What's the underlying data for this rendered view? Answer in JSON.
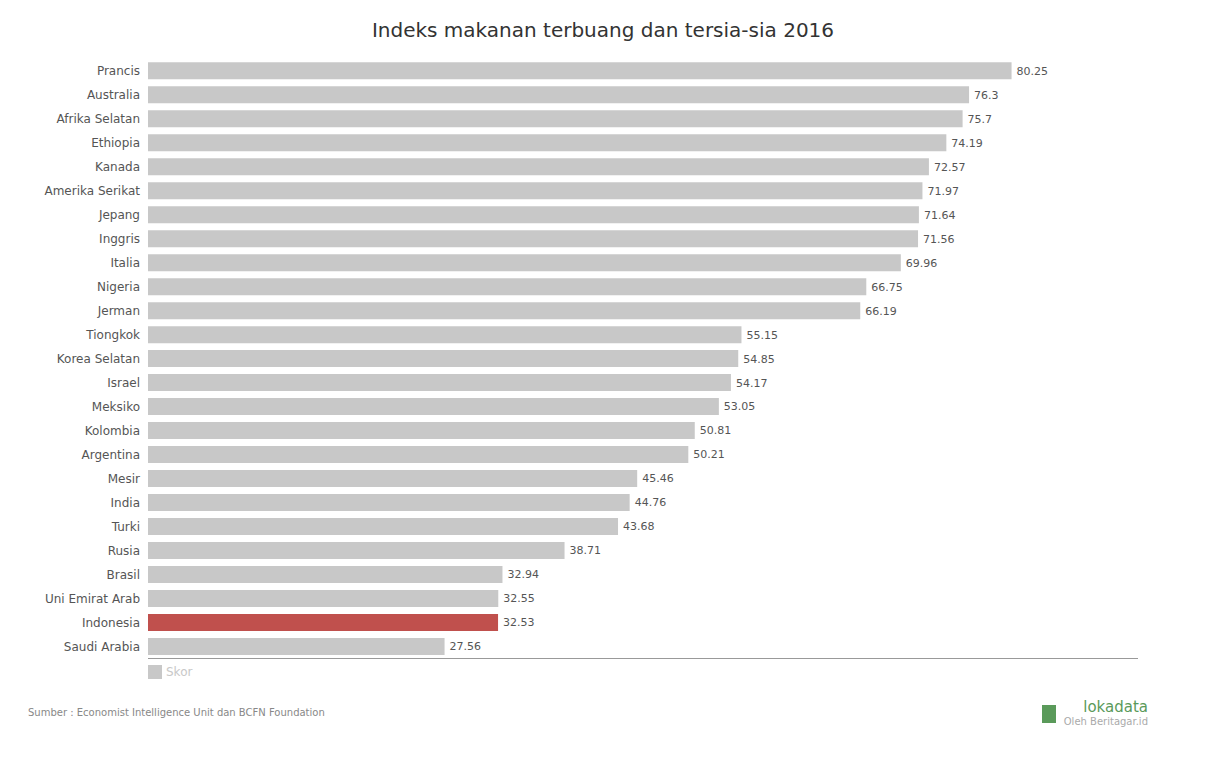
{
  "chart_data": {
    "type": "bar",
    "orientation": "horizontal",
    "title": "Indeks makanan terbuang dan tersia-sia 2016",
    "categories": [
      "Prancis",
      "Australia",
      "Afrika Selatan",
      "Ethiopia",
      "Kanada",
      "Amerika Serikat",
      "Jepang",
      "Inggris",
      "Italia",
      "Nigeria",
      "Jerman",
      "Tiongkok",
      "Korea Selatan",
      "Israel",
      "Meksiko",
      "Kolombia",
      "Argentina",
      "Mesir",
      "India",
      "Turki",
      "Rusia",
      "Brasil",
      "Uni Emirat Arab",
      "Indonesia",
      "Saudi Arabia"
    ],
    "series": [
      {
        "name": "Skor",
        "color": "#c8c8c8",
        "colors": [
          "#c8c8c8",
          "#c8c8c8",
          "#c8c8c8",
          "#c8c8c8",
          "#c8c8c8",
          "#c8c8c8",
          "#c8c8c8",
          "#c8c8c8",
          "#c8c8c8",
          "#c8c8c8",
          "#c8c8c8",
          "#c8c8c8",
          "#c8c8c8",
          "#c8c8c8",
          "#c8c8c8",
          "#c8c8c8",
          "#c8c8c8",
          "#c8c8c8",
          "#c8c8c8",
          "#c8c8c8",
          "#c8c8c8",
          "#c8c8c8",
          "#c8c8c8",
          "#c0504d",
          "#c8c8c8"
        ],
        "values": [
          80.25,
          76.3,
          75.7,
          74.19,
          72.57,
          71.97,
          71.64,
          71.56,
          69.96,
          66.75,
          66.19,
          55.15,
          54.85,
          54.17,
          53.05,
          50.81,
          50.21,
          45.46,
          44.76,
          43.68,
          38.71,
          32.94,
          32.55,
          32.53,
          27.56
        ]
      }
    ],
    "xlim": [
      0,
      92
    ],
    "tick_labels": "y",
    "data_labels": true,
    "grid": false,
    "legend": "lower left",
    "annotations": [
      "Sumber : Economist Intelligence Unit dan BCFN Foundation",
      "lokadata",
      "Oleh Beritagar.id"
    ]
  }
}
